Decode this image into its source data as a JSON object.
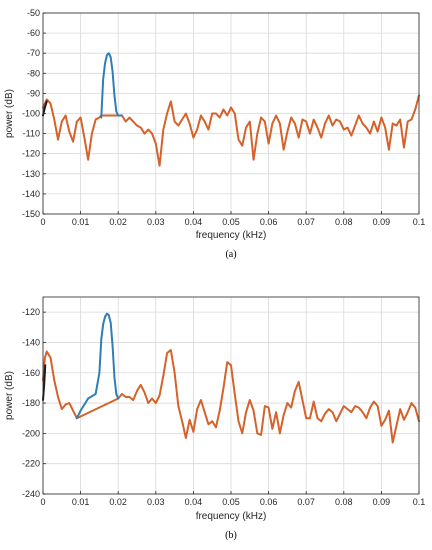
{
  "colors": {
    "baseline": "#d4622a",
    "peak": "#2e7fb5",
    "edge": "#1a1a1a",
    "grid": "#d9d9d9",
    "axis": "#262626"
  },
  "chart_data": [
    {
      "type": "line",
      "panel_label": "(a)",
      "xlabel": "frequency (kHz)",
      "ylabel": "power (dB)",
      "xlim": [
        0,
        0.1
      ],
      "ylim": [
        -150,
        -50
      ],
      "xticks": [
        0,
        0.01,
        0.02,
        0.03,
        0.04,
        0.05,
        0.06,
        0.07,
        0.08,
        0.09,
        0.1
      ],
      "xtick_labels": [
        "0",
        "0.01",
        "0.02",
        "0.03",
        "0.04",
        "0.05",
        "0.06",
        "0.07",
        "0.08",
        "0.09",
        "0.1"
      ],
      "yticks": [
        -50,
        -60,
        -70,
        -80,
        -90,
        -100,
        -110,
        -120,
        -130,
        -140,
        -150
      ],
      "ytick_labels": [
        "-50",
        "-60",
        "-70",
        "-80",
        "-90",
        "-100",
        "-110",
        "-120",
        "-130",
        "-140",
        "-150"
      ],
      "grid": true,
      "series": [
        {
          "color": "#d4622a",
          "x": [
            0,
            0.001,
            0.002,
            0.003,
            0.004,
            0.005,
            0.006,
            0.007,
            0.008,
            0.009,
            0.01,
            0.011,
            0.012,
            0.013,
            0.014,
            0.015,
            0.0155,
            0.021,
            0.022,
            0.023,
            0.024,
            0.025,
            0.026,
            0.027,
            0.028,
            0.029,
            0.03,
            0.031,
            0.032,
            0.033,
            0.034,
            0.035,
            0.036,
            0.037,
            0.038,
            0.039,
            0.04,
            0.041,
            0.042,
            0.043,
            0.044,
            0.045,
            0.046,
            0.047,
            0.048,
            0.049,
            0.05,
            0.051,
            0.052,
            0.053,
            0.054,
            0.055,
            0.056,
            0.057,
            0.058,
            0.059,
            0.06,
            0.061,
            0.062,
            0.063,
            0.064,
            0.065,
            0.066,
            0.067,
            0.068,
            0.069,
            0.07,
            0.071,
            0.072,
            0.073,
            0.074,
            0.075,
            0.076,
            0.077,
            0.078,
            0.079,
            0.08,
            0.081,
            0.082,
            0.083,
            0.084,
            0.085,
            0.086,
            0.087,
            0.088,
            0.089,
            0.09,
            0.091,
            0.092,
            0.093,
            0.094,
            0.095,
            0.096,
            0.097,
            0.098,
            0.099,
            0.1
          ],
          "y": [
            -97,
            -93,
            -95,
            -103,
            -113,
            -104,
            -101,
            -109,
            -114,
            -104,
            -102,
            -112,
            -123,
            -110,
            -103,
            -102,
            -101,
            -101,
            -104,
            -102,
            -104,
            -106,
            -107,
            -110,
            -108,
            -110,
            -115,
            -126,
            -108,
            -100,
            -94,
            -104,
            -106,
            -103,
            -100,
            -105,
            -112,
            -108,
            -101,
            -104,
            -108,
            -100,
            -100,
            -102,
            -98,
            -101,
            -97,
            -100,
            -113,
            -116,
            -107,
            -104,
            -123,
            -110,
            -102,
            -104,
            -115,
            -105,
            -101,
            -105,
            -118,
            -109,
            -102,
            -105,
            -112,
            -103,
            -104,
            -110,
            -103,
            -107,
            -112,
            -105,
            -101,
            -106,
            -103,
            -104,
            -108,
            -107,
            -111,
            -106,
            -101,
            -105,
            -107,
            -110,
            -104,
            -109,
            -102,
            -107,
            -118,
            -105,
            -106,
            -103,
            -117,
            -104,
            -103,
            -98,
            -91
          ]
        },
        {
          "color": "#2e7fb5",
          "x": [
            0.0155,
            0.016,
            0.0165,
            0.017,
            0.0175,
            0.018,
            0.0185,
            0.019,
            0.0195,
            0.02,
            0.021
          ],
          "y": [
            -102,
            -83,
            -75,
            -71,
            -70,
            -72,
            -79,
            -91,
            -99,
            -101,
            -101
          ]
        },
        {
          "color": "#1a1a1a",
          "x": [
            0,
            0.0005,
            0.001
          ],
          "y": [
            -101,
            -97,
            -94
          ]
        }
      ]
    },
    {
      "type": "line",
      "panel_label": "(b)",
      "xlabel": "frequency (kHz)",
      "ylabel": "power (dB)",
      "xlim": [
        0,
        0.1
      ],
      "ylim": [
        -240,
        -110
      ],
      "xticks": [
        0,
        0.01,
        0.02,
        0.03,
        0.04,
        0.05,
        0.06,
        0.07,
        0.08,
        0.09,
        0.1
      ],
      "xtick_labels": [
        "0",
        "0.01",
        "0.02",
        "0.03",
        "0.04",
        "0.05",
        "0.06",
        "0.07",
        "0.08",
        "0.09",
        "0.1"
      ],
      "yticks": [
        -120,
        -140,
        -160,
        -180,
        -200,
        -220,
        -240
      ],
      "ytick_labels": [
        "-120",
        "-140",
        "-160",
        "-180",
        "-200",
        "-220",
        "-240"
      ],
      "grid": true,
      "series": [
        {
          "color": "#d4622a",
          "x": [
            0,
            0.0005,
            0.001,
            0.002,
            0.003,
            0.004,
            0.005,
            0.006,
            0.007,
            0.008,
            0.009,
            0.02,
            0.021,
            0.022,
            0.023,
            0.024,
            0.025,
            0.026,
            0.027,
            0.028,
            0.029,
            0.03,
            0.031,
            0.032,
            0.033,
            0.034,
            0.035,
            0.036,
            0.037,
            0.038,
            0.039,
            0.04,
            0.041,
            0.042,
            0.043,
            0.044,
            0.045,
            0.046,
            0.047,
            0.048,
            0.049,
            0.05,
            0.051,
            0.052,
            0.053,
            0.054,
            0.055,
            0.056,
            0.057,
            0.058,
            0.059,
            0.06,
            0.061,
            0.062,
            0.063,
            0.064,
            0.065,
            0.066,
            0.067,
            0.068,
            0.069,
            0.07,
            0.071,
            0.072,
            0.073,
            0.074,
            0.075,
            0.076,
            0.077,
            0.078,
            0.079,
            0.08,
            0.081,
            0.082,
            0.083,
            0.084,
            0.085,
            0.086,
            0.087,
            0.088,
            0.089,
            0.09,
            0.091,
            0.092,
            0.093,
            0.094,
            0.095,
            0.096,
            0.097,
            0.098,
            0.099,
            0.1
          ],
          "y": [
            -165,
            -150,
            -146,
            -150,
            -165,
            -176,
            -184,
            -181,
            -180,
            -185,
            -190,
            -177,
            -174,
            -176,
            -176,
            -178,
            -172,
            -168,
            -173,
            -180,
            -177,
            -180,
            -175,
            -162,
            -147,
            -145,
            -160,
            -182,
            -192,
            -203,
            -191,
            -199,
            -184,
            -178,
            -186,
            -194,
            -192,
            -196,
            -185,
            -170,
            -153,
            -155,
            -174,
            -192,
            -200,
            -186,
            -178,
            -185,
            -200,
            -201,
            -182,
            -183,
            -197,
            -186,
            -200,
            -188,
            -180,
            -183,
            -172,
            -166,
            -178,
            -190,
            -190,
            -179,
            -190,
            -192,
            -187,
            -184,
            -186,
            -192,
            -187,
            -182,
            -184,
            -186,
            -182,
            -183,
            -186,
            -190,
            -183,
            -179,
            -182,
            -195,
            -191,
            -185,
            -206,
            -195,
            -184,
            -191,
            -186,
            -180,
            -183,
            -192
          ]
        },
        {
          "color": "#2e7fb5",
          "x": [
            0.009,
            0.01,
            0.012,
            0.014,
            0.015,
            0.0155,
            0.016,
            0.0165,
            0.017,
            0.0175,
            0.018,
            0.0185,
            0.019,
            0.0195,
            0.02
          ],
          "y": [
            -190,
            -185,
            -177,
            -174,
            -160,
            -138,
            -128,
            -123,
            -121,
            -122,
            -127,
            -142,
            -163,
            -174,
            -177
          ]
        },
        {
          "color": "#1a1a1a",
          "x": [
            0,
            0.0003,
            0.0006
          ],
          "y": [
            -178,
            -168,
            -155
          ]
        }
      ]
    }
  ]
}
